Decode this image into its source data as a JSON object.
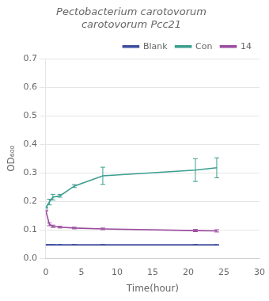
{
  "chart_data": {
    "type": "line",
    "title": "Pectobacterium carotovorum\ncarotovorum Pcc21",
    "xlabel": "Time(hour)",
    "ylabel": "OD₆₀₀",
    "x": [
      0,
      0.5,
      1,
      2,
      4,
      8,
      21,
      24
    ],
    "series": [
      {
        "name": "Blank",
        "color": "#3d4d9e",
        "values": [
          0.048,
          0.048,
          0.048,
          0.048,
          0.048,
          0.048,
          0.048,
          0.048
        ],
        "yerr": [
          0.001,
          0.001,
          0.001,
          0.001,
          0.001,
          0.001,
          0.001,
          0.001
        ]
      },
      {
        "name": "Con",
        "color": "#3a9e8e",
        "values": [
          0.178,
          0.198,
          0.215,
          0.22,
          0.254,
          0.29,
          0.31,
          0.318
        ],
        "yerr": [
          0.002,
          0.01,
          0.01,
          0.005,
          0.005,
          0.03,
          0.04,
          0.035
        ]
      },
      {
        "name": "14",
        "color": "#9b4b9e",
        "values": [
          0.168,
          0.12,
          0.113,
          0.11,
          0.107,
          0.104,
          0.098,
          0.097
        ],
        "yerr": [
          0.002,
          0.005,
          0.004,
          0.003,
          0.003,
          0.003,
          0.004,
          0.004
        ]
      }
    ],
    "xlim": [
      0,
      30
    ],
    "ylim": [
      0,
      0.7
    ],
    "xticks": [
      0,
      5,
      10,
      15,
      20,
      25,
      30
    ],
    "yticks": [
      {
        "value": 0,
        "label": "0.0"
      },
      0.1,
      0.2,
      0.3,
      0.4,
      0.5,
      0.6,
      0.7
    ],
    "grid": "y",
    "legend": "top",
    "marker": "none"
  }
}
